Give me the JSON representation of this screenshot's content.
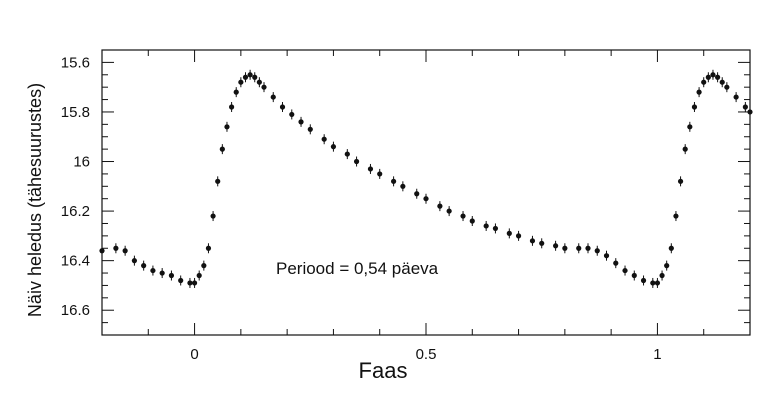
{
  "chart_data": {
    "type": "scatter",
    "title": "",
    "xlabel": "Faas",
    "ylabel": "Näiv heledus (tähesuurustes)",
    "annotation": "Periood = 0,54 päeva",
    "xlim": [
      -0.2,
      1.2
    ],
    "ylim": [
      16.7,
      15.55
    ],
    "y_inverted": true,
    "x_ticks": [
      0,
      0.5,
      1
    ],
    "x_tick_labels": [
      "0",
      "0.5",
      "1"
    ],
    "y_ticks": [
      15.6,
      15.8,
      16,
      16.2,
      16.4,
      16.6
    ],
    "y_tick_labels": [
      "15.6",
      "15.8",
      "16",
      "16.2",
      "16.4",
      "16.6"
    ],
    "grid": false,
    "series": [
      {
        "name": "light curve",
        "marker": "dot",
        "error_bars": true,
        "x": [
          -0.2,
          -0.17,
          -0.15,
          -0.13,
          -0.11,
          -0.09,
          -0.07,
          -0.05,
          -0.03,
          -0.01,
          0.0,
          0.01,
          0.02,
          0.03,
          0.04,
          0.05,
          0.06,
          0.07,
          0.08,
          0.09,
          0.1,
          0.11,
          0.12,
          0.13,
          0.14,
          0.15,
          0.17,
          0.19,
          0.21,
          0.23,
          0.25,
          0.28,
          0.3,
          0.33,
          0.35,
          0.38,
          0.4,
          0.43,
          0.45,
          0.48,
          0.5,
          0.53,
          0.55,
          0.58,
          0.6,
          0.63,
          0.65,
          0.68,
          0.7,
          0.73,
          0.75,
          0.78,
          0.8,
          0.83,
          0.85,
          0.87,
          0.89,
          0.91,
          0.93,
          0.95,
          0.97,
          0.99,
          1.0,
          1.01,
          1.02,
          1.03,
          1.04,
          1.05,
          1.06,
          1.07,
          1.08,
          1.09,
          1.1,
          1.11,
          1.12,
          1.13,
          1.14,
          1.15,
          1.17,
          1.19,
          1.2
        ],
        "y": [
          16.36,
          16.35,
          16.36,
          16.4,
          16.42,
          16.44,
          16.45,
          16.46,
          16.48,
          16.49,
          16.49,
          16.46,
          16.42,
          16.35,
          16.22,
          16.08,
          15.95,
          15.86,
          15.78,
          15.72,
          15.68,
          15.66,
          15.65,
          15.66,
          15.68,
          15.7,
          15.74,
          15.78,
          15.81,
          15.84,
          15.87,
          15.91,
          15.94,
          15.97,
          16.0,
          16.03,
          16.05,
          16.08,
          16.1,
          16.13,
          16.15,
          16.18,
          16.2,
          16.22,
          16.24,
          16.26,
          16.27,
          16.29,
          16.3,
          16.32,
          16.33,
          16.34,
          16.35,
          16.35,
          16.35,
          16.36,
          16.38,
          16.41,
          16.44,
          16.46,
          16.48,
          16.49,
          16.49,
          16.46,
          16.42,
          16.35,
          16.22,
          16.08,
          15.95,
          15.86,
          15.78,
          15.72,
          15.68,
          15.66,
          15.65,
          15.66,
          15.68,
          15.7,
          15.74,
          15.78,
          15.8
        ]
      }
    ]
  }
}
